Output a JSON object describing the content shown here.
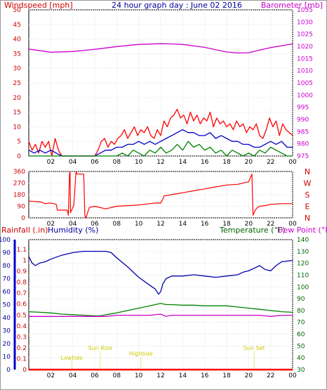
{
  "header": {
    "windspeed_label": "Windspeed [mph]",
    "title": "24 hour graph day : June 02 2016",
    "barometer_label": "Barometer [mb]"
  },
  "lower_header": {
    "rainfall_label": "Rainfall (.in)",
    "humidity_label": "Humidity (%)",
    "temperature_label": "Temperature (°F)",
    "dewpoint_label": "Dew Point (°F)"
  },
  "colors": {
    "wind_gust": "#ff0000",
    "wind_avg": "#0000cc",
    "wind_min": "#008000",
    "barometer": "#cc00cc",
    "direction": "#ff0000",
    "humidity": "#0000aa",
    "temperature": "#008000",
    "dewpoint": "#cc00cc",
    "rainfall": "#ff0000",
    "sun": "#cccc00"
  },
  "chart_data": [
    {
      "type": "line",
      "name": "wind-barometer",
      "title": "24 hour graph day : June 02 2016",
      "x_ticks": [
        "02",
        "04",
        "06",
        "08",
        "10",
        "12",
        "14",
        "16",
        "18",
        "20",
        "22",
        "00"
      ],
      "y_left_ticks": [
        "0",
        "5",
        "10",
        "15",
        "20",
        "25",
        "30",
        "35",
        "40",
        "45",
        "50"
      ],
      "y_left_label": "Windspeed [mph]",
      "ylim_left": [
        0,
        50
      ],
      "y_right_ticks": [
        "975",
        "980",
        "985",
        "990",
        "995",
        "1000",
        "1005",
        "1010",
        "1015",
        "1020",
        "1025",
        "1030",
        "1035"
      ],
      "y_right_label": "Barometer [mb]",
      "ylim_right": [
        975,
        1035
      ],
      "xlim": [
        0,
        24
      ],
      "series": [
        {
          "role": "gust",
          "x": [
            0,
            0.3,
            0.6,
            0.9,
            1.2,
            1.5,
            1.8,
            2.1,
            2.4,
            2.7,
            3.0,
            3.5,
            4.0,
            4.5,
            5.0,
            5.5,
            6.0,
            6.3,
            6.6,
            6.9,
            7.2,
            7.5,
            7.8,
            8.1,
            8.4,
            8.7,
            9.0,
            9.3,
            9.6,
            9.9,
            10.2,
            10.5,
            10.8,
            11.1,
            11.4,
            11.7,
            12.0,
            12.3,
            12.6,
            12.9,
            13.2,
            13.5,
            13.8,
            14.1,
            14.4,
            14.7,
            15.0,
            15.3,
            15.6,
            15.9,
            16.2,
            16.5,
            16.8,
            17.1,
            17.4,
            17.7,
            18.0,
            18.3,
            18.6,
            18.9,
            19.2,
            19.5,
            19.8,
            20.1,
            20.4,
            20.7,
            21.0,
            21.3,
            21.6,
            21.9,
            22.2,
            22.5,
            22.8,
            23.1,
            23.4,
            23.7,
            24.0
          ],
          "y": [
            5,
            2,
            4,
            1,
            5,
            3,
            5,
            0,
            6,
            2,
            0,
            0,
            0,
            0,
            0,
            0,
            0,
            2,
            5,
            6,
            3,
            5,
            4,
            6,
            7,
            9,
            6,
            8,
            10,
            7,
            9,
            8,
            10,
            7,
            6,
            9,
            7,
            12,
            10,
            13,
            14,
            16,
            13,
            14,
            11,
            15,
            12,
            14,
            11,
            13,
            12,
            15,
            10,
            13,
            11,
            12,
            10,
            11,
            9,
            12,
            10,
            11,
            8,
            10,
            9,
            11,
            7,
            6,
            9,
            13,
            10,
            12,
            7,
            11,
            9,
            8,
            7
          ]
        },
        {
          "role": "average",
          "x": [
            0,
            0.5,
            1.0,
            1.5,
            2.0,
            2.5,
            3.0,
            4.0,
            5.0,
            6.0,
            6.5,
            7.0,
            7.5,
            8.0,
            8.5,
            9.0,
            9.5,
            10.0,
            10.5,
            11.0,
            11.5,
            12.0,
            12.5,
            13.0,
            13.5,
            14.0,
            14.5,
            15.0,
            15.5,
            16.0,
            16.5,
            17.0,
            17.5,
            18.0,
            18.5,
            19.0,
            19.5,
            20.0,
            20.5,
            21.0,
            21.5,
            22.0,
            22.5,
            23.0,
            23.5,
            24.0
          ],
          "y": [
            2,
            1,
            2,
            1,
            2,
            1,
            0,
            0,
            0,
            0,
            1,
            2,
            2,
            3,
            3,
            4,
            4,
            5,
            4,
            5,
            4,
            5,
            6,
            7,
            8,
            9,
            8,
            8,
            7,
            7,
            8,
            6,
            7,
            6,
            5,
            5,
            4,
            4,
            3,
            3,
            4,
            5,
            4,
            5,
            3,
            3
          ]
        },
        {
          "role": "minimum",
          "x": [
            0,
            1,
            2,
            3,
            6,
            7,
            8,
            8.5,
            9,
            9.5,
            10,
            10.5,
            11,
            11.5,
            12,
            12.5,
            13,
            13.5,
            14,
            14.5,
            15,
            15.5,
            16,
            16.5,
            17,
            17.5,
            18,
            18.5,
            19,
            19.5,
            20,
            20.5,
            21,
            21.5,
            22,
            22.5,
            23,
            23.5,
            24
          ],
          "y": [
            0,
            0,
            0,
            0,
            0,
            0,
            0,
            1,
            0,
            2,
            1,
            0,
            2,
            1,
            3,
            1,
            2,
            4,
            2,
            5,
            3,
            4,
            2,
            3,
            1,
            2,
            0,
            2,
            1,
            0,
            1,
            0,
            2,
            1,
            3,
            2,
            1,
            0,
            0
          ]
        },
        {
          "role": "barometer",
          "x": [
            0,
            2,
            4,
            6,
            8,
            10,
            12,
            13,
            14,
            16,
            18,
            19,
            20,
            22,
            24
          ],
          "y": [
            1018.9,
            1017.6,
            1017.9,
            1018.8,
            1019.9,
            1020.8,
            1021.1,
            1021.0,
            1020.8,
            1019.6,
            1017.7,
            1017.3,
            1017.4,
            1019.5,
            1021.0
          ]
        }
      ]
    },
    {
      "type": "line",
      "name": "wind-direction",
      "x_ticks": [
        "02",
        "04",
        "06",
        "08",
        "10",
        "12",
        "14",
        "16",
        "18",
        "20",
        "22",
        "00"
      ],
      "y_left_ticks": [
        "0",
        "90",
        "180",
        "270",
        "360"
      ],
      "ylim": [
        0,
        360
      ],
      "y_right_labels": [
        "N",
        "W",
        "S",
        "E",
        "N"
      ],
      "xlim": [
        0,
        24
      ],
      "x": [
        0,
        1.0,
        1.5,
        2.0,
        2.5,
        2.6,
        3.5,
        3.6,
        3.7,
        3.75,
        3.8,
        4.1,
        4.3,
        4.4,
        4.5,
        5.0,
        5.1,
        5.2,
        5.5,
        6.0,
        7.0,
        8.0,
        9.0,
        10.0,
        11.0,
        11.5,
        12.0,
        12.2,
        12.3,
        13.0,
        14.0,
        15.0,
        16.0,
        17.0,
        18.0,
        19.0,
        20.0,
        20.3,
        20.4,
        20.6,
        20.8,
        21.0,
        21.5,
        22.0,
        23.0,
        24.0
      ],
      "y": [
        130,
        125,
        110,
        115,
        105,
        60,
        60,
        20,
        340,
        360,
        40,
        100,
        360,
        340,
        340,
        340,
        20,
        0,
        80,
        90,
        70,
        90,
        95,
        100,
        110,
        115,
        115,
        145,
        170,
        180,
        195,
        210,
        225,
        240,
        255,
        260,
        280,
        340,
        20,
        60,
        80,
        90,
        95,
        105,
        110,
        110
      ]
    },
    {
      "type": "line",
      "name": "humidity-temperature",
      "x_ticks": [
        "02",
        "04",
        "06",
        "08",
        "10",
        "12",
        "14",
        "16",
        "18",
        "20",
        "22",
        "00"
      ],
      "y_left_ticks": [
        "0",
        "10",
        "20",
        "30",
        "40",
        "50",
        "60",
        "70",
        "80",
        "90",
        "100"
      ],
      "y_left_label": "Humidity (%)",
      "ylim_left": [
        0,
        100
      ],
      "rain_ticks": [
        "0",
        "0.1",
        "0.2",
        "0.3",
        "0.4",
        "0.5",
        "0.6",
        "0.7",
        "0.8",
        "0.9",
        "1",
        "1.1"
      ],
      "rain_label": "Rainfall (.in)",
      "y_right_ticks": [
        "30",
        "40",
        "50",
        "60",
        "70",
        "80",
        "90",
        "100",
        "110",
        "120",
        "130",
        "140"
      ],
      "y_right_label": "Temperature (°F)",
      "ylim_right": [
        30,
        140
      ],
      "xlim": [
        0,
        24
      ],
      "annotations": [
        {
          "text": "Lowtide",
          "x": 3.9
        },
        {
          "text": "Sun Rise",
          "x": 6.5
        },
        {
          "text": "Hightide",
          "x": 10.2
        },
        {
          "text": "Sun Set",
          "x": 20.5
        }
      ],
      "series": [
        {
          "role": "humidity",
          "x": [
            0,
            0.3,
            0.6,
            1.0,
            1.5,
            2.0,
            3.0,
            4.0,
            5.0,
            6.0,
            7.0,
            7.5,
            8.0,
            9.0,
            10.0,
            11.0,
            11.5,
            11.8,
            12.0,
            12.2,
            12.5,
            13.0,
            14.0,
            15.0,
            16.0,
            17.0,
            18.0,
            19.0,
            19.5,
            20.0,
            21.0,
            21.5,
            22.0,
            22.5,
            23.0,
            24.0
          ],
          "y": [
            87,
            82,
            80,
            82,
            83,
            85,
            88,
            90,
            91,
            91,
            91,
            90,
            86,
            79,
            71,
            65,
            62,
            58,
            60,
            66,
            70,
            72,
            72,
            73,
            72,
            71,
            72,
            73,
            75,
            76,
            80,
            77,
            76,
            80,
            83,
            84
          ]
        },
        {
          "role": "temperature",
          "x": [
            0,
            1,
            2,
            3,
            4,
            5,
            6,
            6.5,
            7,
            8,
            9,
            10,
            11,
            11.5,
            12,
            12.5,
            13,
            14,
            15,
            16,
            17,
            18,
            19,
            20,
            21,
            22,
            23,
            24
          ],
          "y": [
            79,
            78.5,
            78,
            77,
            76.5,
            76,
            75.5,
            75.5,
            76.5,
            78,
            80,
            82,
            84,
            85,
            86,
            85,
            85,
            84.5,
            84.5,
            84,
            84,
            84,
            83,
            82,
            81,
            80,
            79,
            78.5
          ]
        },
        {
          "role": "dewpoint",
          "x": [
            0,
            1,
            2,
            3,
            4,
            5,
            6,
            7,
            8,
            9,
            10,
            11,
            12,
            12.5,
            13,
            14,
            15,
            16,
            17,
            18,
            19,
            20,
            21,
            22,
            23,
            24
          ],
          "y": [
            75,
            75,
            75,
            75,
            75,
            75,
            75,
            75,
            76,
            76,
            76,
            76,
            77,
            75,
            76,
            76,
            76,
            76,
            76,
            76,
            76,
            76,
            76,
            75,
            76,
            76
          ]
        },
        {
          "role": "rainfall",
          "x": [
            0,
            24
          ],
          "y": [
            0,
            0
          ]
        }
      ]
    }
  ]
}
